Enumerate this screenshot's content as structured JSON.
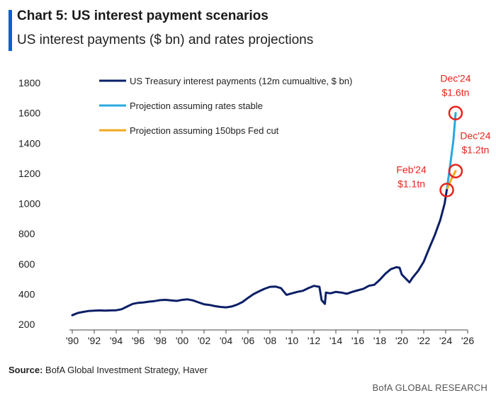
{
  "header": {
    "title": "Chart 5: US interest payment scenarios",
    "subtitle": "US interest payments ($ bn) and rates projections"
  },
  "footer": {
    "source_label": "Source:",
    "source_text": " BofA Global Investment Strategy, Haver",
    "brand": "BofA GLOBAL RESEARCH"
  },
  "colors": {
    "accent": "#0a5fd6",
    "actual": "#0b1f66",
    "stable": "#29a8e0",
    "cut": "#f2a81d",
    "annotation": "#e8231c"
  },
  "chart_data": {
    "type": "line",
    "title": "",
    "xlabel": "",
    "ylabel": "",
    "xlim": [
      1990,
      2026
    ],
    "ylim": [
      200,
      1800
    ],
    "yticks": [
      200,
      400,
      600,
      800,
      1000,
      1200,
      1400,
      1600,
      1800
    ],
    "xtick_labels": [
      "'90",
      "'92",
      "'94",
      "'96",
      "'98",
      "'00",
      "'02",
      "'04",
      "'06",
      "'08",
      "'10",
      "'12",
      "'14",
      "'16",
      "'18",
      "'20",
      "'22",
      "'24",
      "'26"
    ],
    "xtick_years": [
      1990,
      1992,
      1994,
      1996,
      1998,
      2000,
      2002,
      2004,
      2006,
      2008,
      2010,
      2012,
      2014,
      2016,
      2018,
      2020,
      2022,
      2024,
      2026
    ],
    "legend_position": "top-left",
    "grid": false,
    "series": [
      {
        "name": "US Treasury interest payments (12m cumualtive, $ bn)",
        "color_key": "actual",
        "points": [
          [
            1990.0,
            260
          ],
          [
            1990.5,
            275
          ],
          [
            1991.0,
            282
          ],
          [
            1991.5,
            288
          ],
          [
            1992.0,
            290
          ],
          [
            1992.5,
            292
          ],
          [
            1993.0,
            290
          ],
          [
            1993.5,
            292
          ],
          [
            1994.0,
            293
          ],
          [
            1994.5,
            300
          ],
          [
            1995.0,
            318
          ],
          [
            1995.5,
            335
          ],
          [
            1996.0,
            342
          ],
          [
            1996.5,
            345
          ],
          [
            1997.0,
            350
          ],
          [
            1997.5,
            354
          ],
          [
            1998.0,
            360
          ],
          [
            1998.5,
            362
          ],
          [
            1999.0,
            358
          ],
          [
            1999.5,
            355
          ],
          [
            2000.0,
            362
          ],
          [
            2000.5,
            365
          ],
          [
            2001.0,
            358
          ],
          [
            2001.5,
            345
          ],
          [
            2002.0,
            333
          ],
          [
            2002.5,
            328
          ],
          [
            2003.0,
            320
          ],
          [
            2003.5,
            315
          ],
          [
            2004.0,
            312
          ],
          [
            2004.5,
            318
          ],
          [
            2005.0,
            330
          ],
          [
            2005.5,
            348
          ],
          [
            2006.0,
            375
          ],
          [
            2006.5,
            400
          ],
          [
            2007.0,
            418
          ],
          [
            2007.5,
            435
          ],
          [
            2008.0,
            448
          ],
          [
            2008.5,
            450
          ],
          [
            2009.0,
            440
          ],
          [
            2009.5,
            395
          ],
          [
            2010.0,
            405
          ],
          [
            2010.5,
            415
          ],
          [
            2011.0,
            422
          ],
          [
            2011.5,
            440
          ],
          [
            2012.0,
            455
          ],
          [
            2012.5,
            448
          ],
          [
            2012.7,
            360
          ],
          [
            2013.0,
            335
          ],
          [
            2013.1,
            410
          ],
          [
            2013.5,
            405
          ],
          [
            2014.0,
            415
          ],
          [
            2014.5,
            410
          ],
          [
            2015.0,
            402
          ],
          [
            2015.5,
            415
          ],
          [
            2016.0,
            425
          ],
          [
            2016.5,
            435
          ],
          [
            2017.0,
            455
          ],
          [
            2017.5,
            462
          ],
          [
            2018.0,
            495
          ],
          [
            2018.5,
            535
          ],
          [
            2019.0,
            565
          ],
          [
            2019.5,
            578
          ],
          [
            2019.8,
            575
          ],
          [
            2020.0,
            530
          ],
          [
            2020.4,
            500
          ],
          [
            2020.7,
            478
          ],
          [
            2021.0,
            510
          ],
          [
            2021.5,
            555
          ],
          [
            2022.0,
            615
          ],
          [
            2022.5,
            705
          ],
          [
            2023.0,
            790
          ],
          [
            2023.5,
            890
          ],
          [
            2023.9,
            1000
          ],
          [
            2024.1,
            1090
          ]
        ]
      },
      {
        "name": "Projection assuming rates stable",
        "color_key": "stable",
        "points": [
          [
            2024.1,
            1090
          ],
          [
            2024.4,
            1250
          ],
          [
            2024.7,
            1420
          ],
          [
            2024.9,
            1600
          ]
        ]
      },
      {
        "name": "Projection assuming 150bps Fed cut",
        "color_key": "cut",
        "points": [
          [
            2024.1,
            1090
          ],
          [
            2024.5,
            1160
          ],
          [
            2024.9,
            1215
          ]
        ]
      }
    ],
    "annotations": [
      {
        "label_line1": "Dec'24",
        "label_line2": "$1.6tn",
        "x": 2024.9,
        "y": 1600,
        "placement": "above"
      },
      {
        "label_line1": "Dec'24",
        "label_line2": "$1.2tn",
        "x": 2024.9,
        "y": 1215,
        "placement": "right-above"
      },
      {
        "label_line1": "Feb'24",
        "label_line2": "$1.1tn",
        "x": 2024.1,
        "y": 1090,
        "placement": "left-above"
      }
    ]
  }
}
